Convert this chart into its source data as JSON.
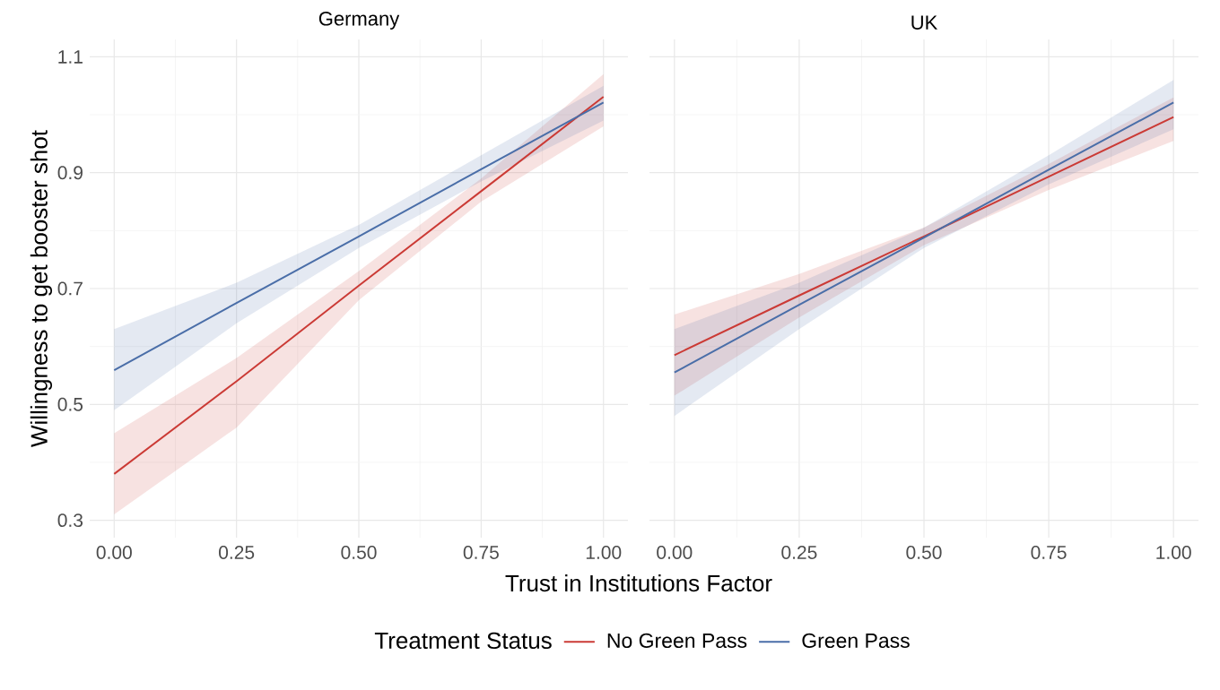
{
  "chart_data": [
    {
      "type": "line",
      "title": "Germany",
      "xlabel": "Trust in Institutions Factor",
      "ylabel": "Willingness to get booster shot",
      "legend_title": "Treatment Status",
      "x": [
        0,
        0.25,
        0.5,
        0.75,
        1
      ],
      "xlim": [
        -0.05,
        1.05
      ],
      "ylim": [
        0.27,
        1.13
      ],
      "xticks": [
        {
          "value": 0,
          "label": "0.00"
        },
        {
          "value": 0.25,
          "label": "0.25"
        },
        {
          "value": 0.5,
          "label": "0.50"
        },
        {
          "value": 0.75,
          "label": "0.75"
        },
        {
          "value": 1,
          "label": "1.00"
        }
      ],
      "yticks": [
        0.3,
        0.5,
        0.7,
        0.9,
        1.1
      ],
      "grid": true,
      "legend": "bottom",
      "series": [
        {
          "name": "No Green Pass",
          "color": "#cb3a35",
          "values": [
            0.38,
            0.54,
            0.705,
            0.868,
            1.031
          ],
          "lower": [
            0.31,
            0.46,
            0.68,
            0.85,
            0.98
          ],
          "upper": [
            0.45,
            0.58,
            0.73,
            0.89,
            1.07
          ]
        },
        {
          "name": "Green Pass",
          "color": "#4a6ea8",
          "values": [
            0.559,
            0.675,
            0.79,
            0.906,
            1.021
          ],
          "lower": [
            0.49,
            0.64,
            0.77,
            0.885,
            0.99
          ],
          "upper": [
            0.63,
            0.71,
            0.81,
            0.93,
            1.05
          ]
        }
      ]
    },
    {
      "type": "line",
      "title": "UK",
      "x": [
        0,
        0.25,
        0.5,
        0.75,
        1
      ],
      "xlim": [
        -0.05,
        1.05
      ],
      "ylim": [
        0.27,
        1.13
      ],
      "xticks": [
        {
          "value": 0,
          "label": "0.00"
        },
        {
          "value": 0.25,
          "label": "0.25"
        },
        {
          "value": 0.5,
          "label": "0.50"
        },
        {
          "value": 0.75,
          "label": "0.75"
        },
        {
          "value": 1,
          "label": "1.00"
        }
      ],
      "yticks": [
        0.3,
        0.5,
        0.7,
        0.9,
        1.1
      ],
      "grid": true,
      "tick_labels": "x",
      "series": [
        {
          "color": "#cb3a35",
          "values": [
            0.585,
            0.688,
            0.79,
            0.893,
            0.996
          ],
          "lower": [
            0.515,
            0.65,
            0.775,
            0.87,
            0.955
          ],
          "upper": [
            0.655,
            0.725,
            0.805,
            0.915,
            1.03
          ]
        },
        {
          "color": "#4a6ea8",
          "values": [
            0.555,
            0.672,
            0.788,
            0.905,
            1.021
          ],
          "lower": [
            0.48,
            0.63,
            0.77,
            0.88,
            0.975
          ],
          "upper": [
            0.63,
            0.71,
            0.805,
            0.93,
            1.06
          ]
        }
      ]
    }
  ]
}
